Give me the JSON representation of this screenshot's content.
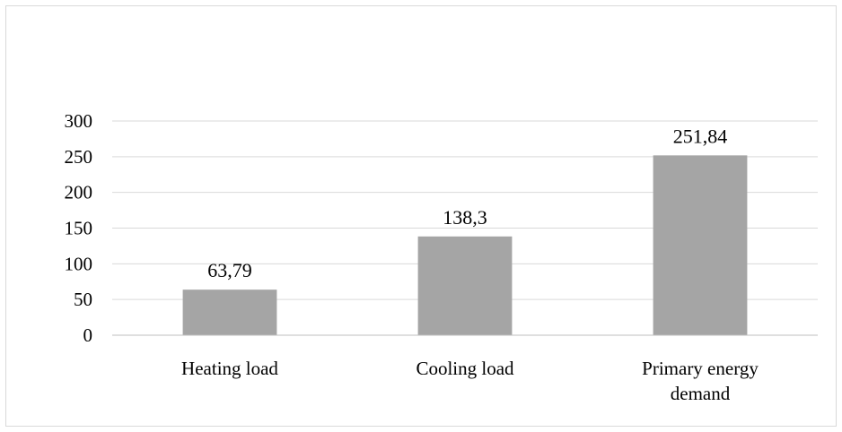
{
  "chart_data": {
    "type": "bar",
    "title": "",
    "xlabel": "",
    "ylabel": "",
    "categories": [
      "Heating load",
      "Cooling load",
      "Primary energy demand"
    ],
    "category_lines": [
      [
        "Heating load"
      ],
      [
        "Cooling load"
      ],
      [
        "Primary energy",
        "demand"
      ]
    ],
    "values": [
      63.79,
      138.3,
      251.84
    ],
    "value_labels": [
      "63,79",
      "138,3",
      "251,84"
    ],
    "ylim": [
      0,
      300
    ],
    "yticks": [
      0,
      50,
      100,
      150,
      200,
      250,
      300
    ],
    "grid": true,
    "legend": "none",
    "colors": {
      "bar": "#a5a5a5",
      "grid": "#d9d9d9",
      "axis": "#bfbfbf",
      "border": "#d9d9d9"
    }
  }
}
